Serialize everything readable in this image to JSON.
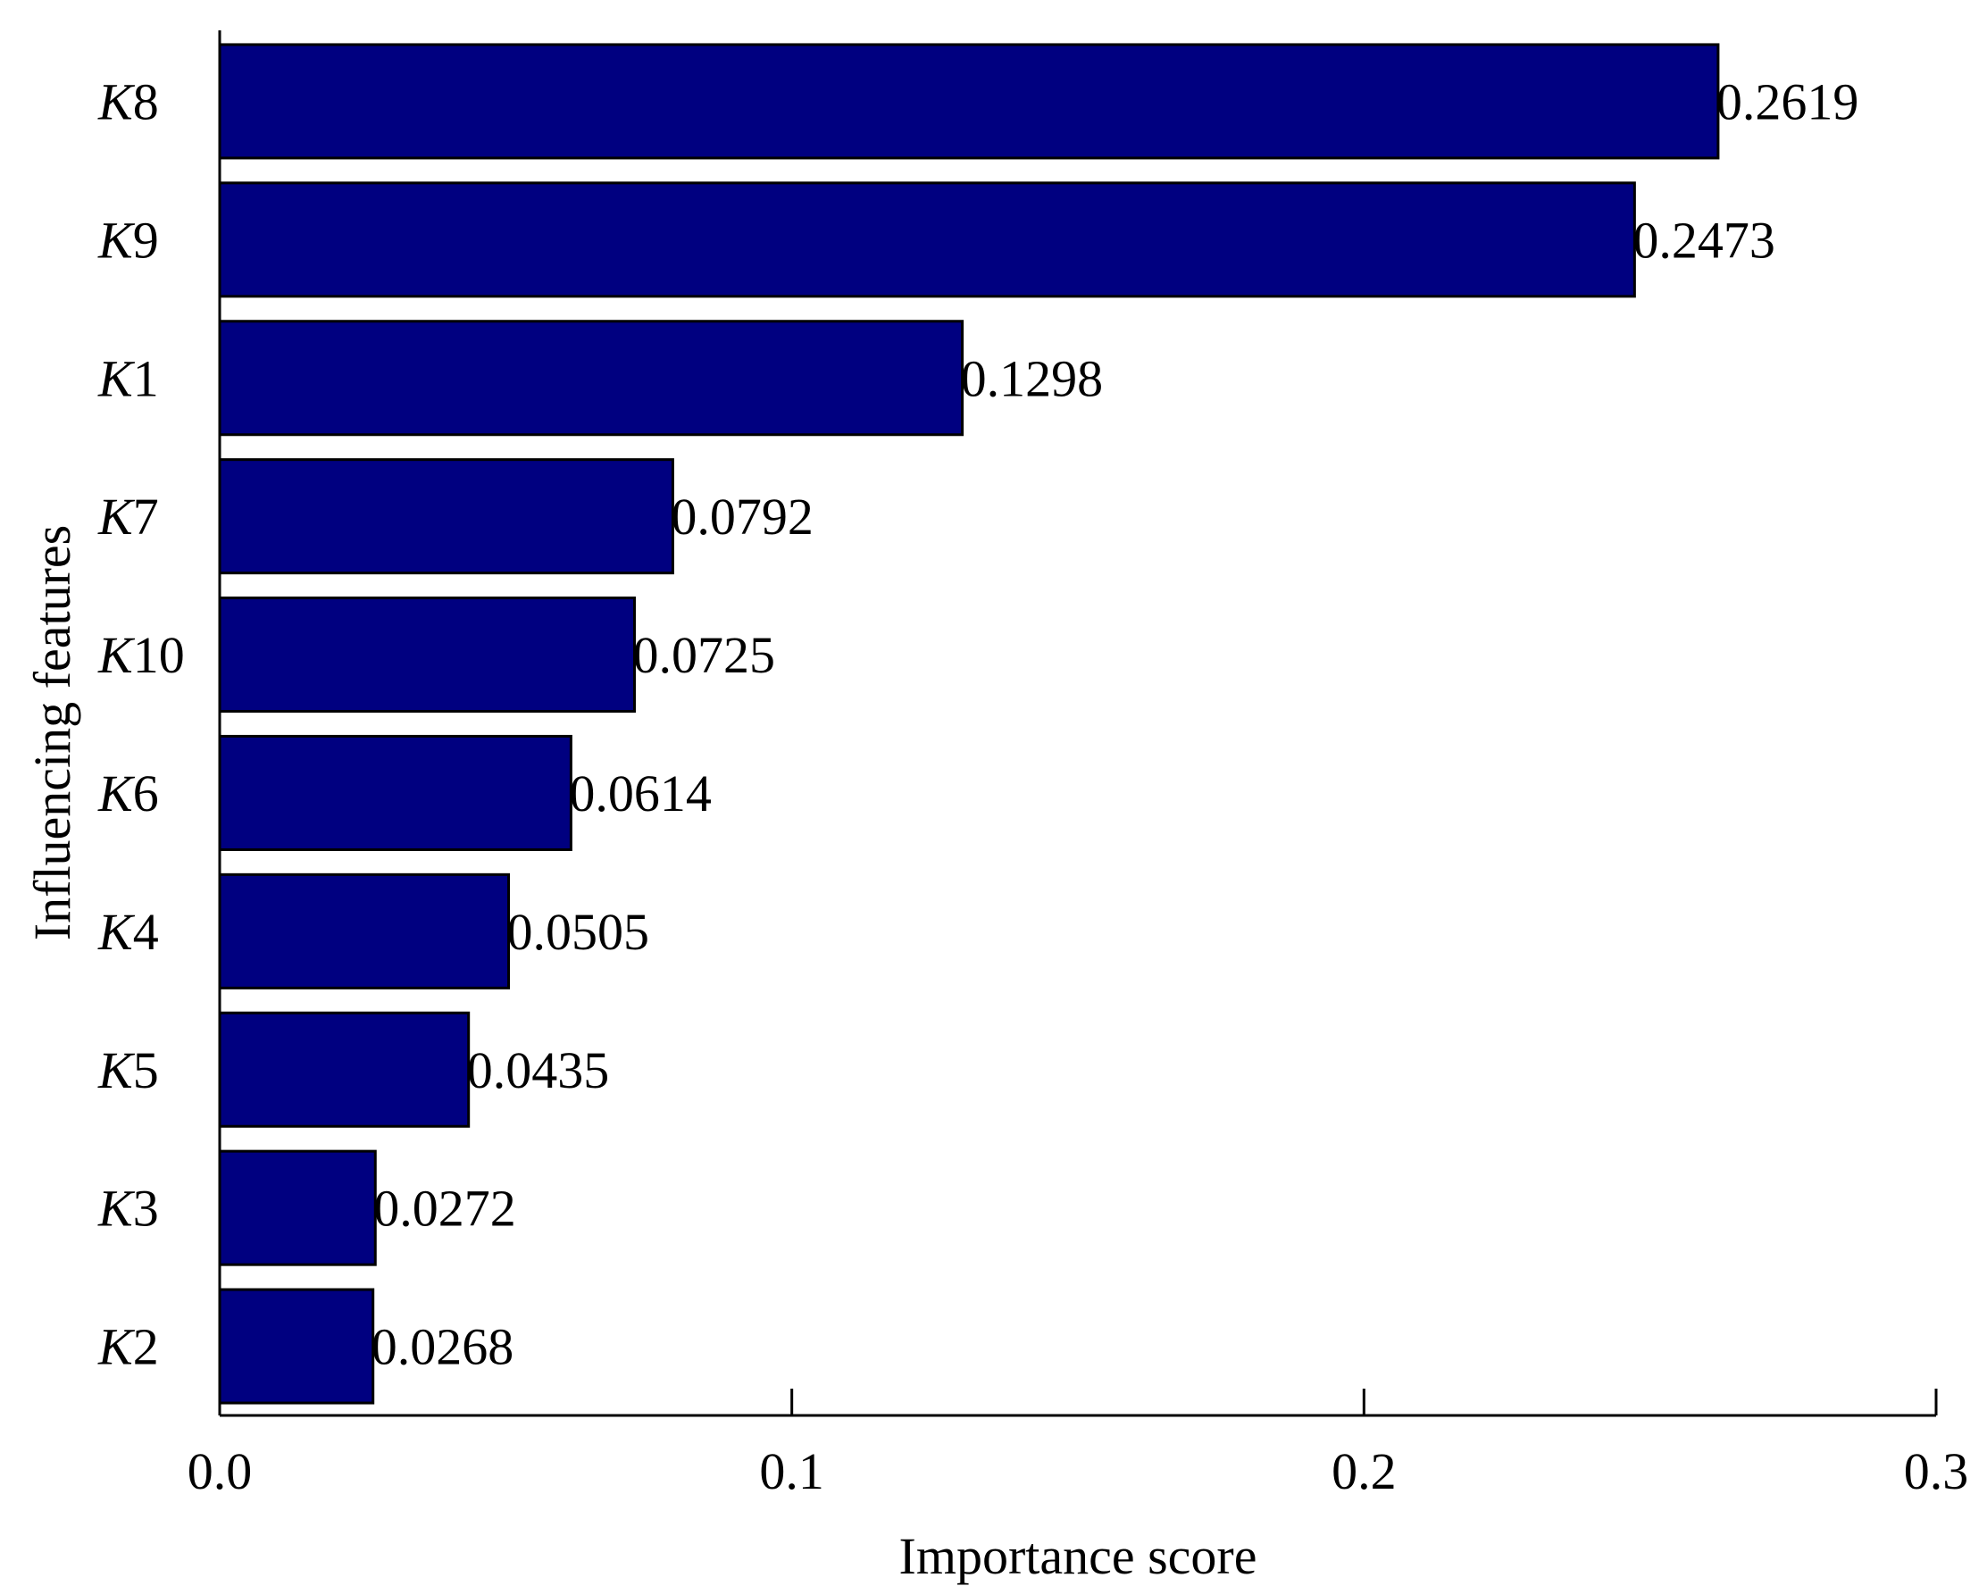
{
  "chart_data": {
    "type": "bar",
    "orientation": "horizontal",
    "categories": [
      "K8",
      "K9",
      "K1",
      "K7",
      "K10",
      "K6",
      "K4",
      "K5",
      "K3",
      "K2"
    ],
    "category_letters": [
      "K",
      "K",
      "K",
      "K",
      "K",
      "K",
      "K",
      "K",
      "K",
      "K"
    ],
    "category_numbers": [
      "8",
      "9",
      "1",
      "7",
      "10",
      "6",
      "4",
      "5",
      "3",
      "2"
    ],
    "values": [
      0.2619,
      0.2473,
      0.1298,
      0.0792,
      0.0725,
      0.0614,
      0.0505,
      0.0435,
      0.0272,
      0.0268
    ],
    "value_labels": [
      "0.2619",
      "0.2473",
      "0.1298",
      "0.0792",
      "0.0725",
      "0.0614",
      "0.0505",
      "0.0435",
      "0.0272",
      "0.0268"
    ],
    "xlabel": "Importance score",
    "ylabel": "Influencing features",
    "xlim": [
      0,
      0.3
    ],
    "xticks": [
      0,
      0.1,
      0.2,
      0.3
    ],
    "xtick_labels": [
      "0.0",
      "0.1",
      "0.2",
      "0.3"
    ],
    "grid": false,
    "bar_color": "#000080",
    "bar_edge_color": "#000000"
  }
}
